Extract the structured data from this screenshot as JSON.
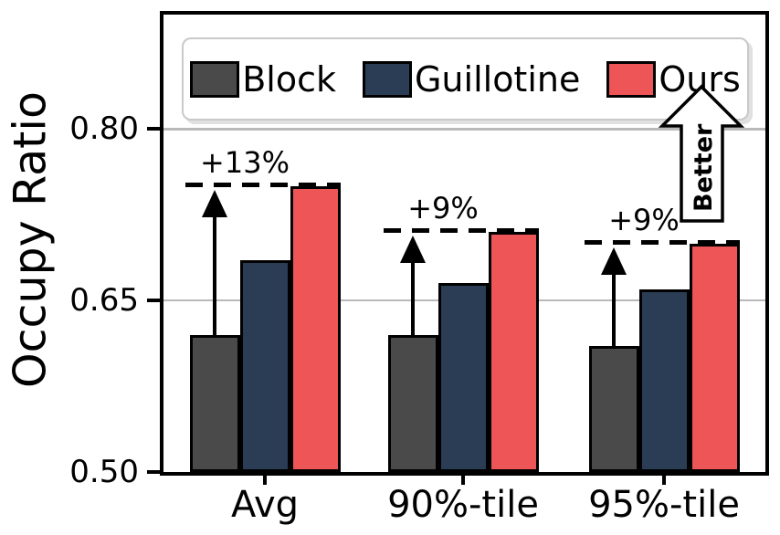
{
  "chart_data": {
    "type": "bar",
    "title": "",
    "ylabel": "Occupy Ratio",
    "xlabel": "",
    "categories": [
      "Avg",
      "90%-tile",
      "95%-tile"
    ],
    "series": [
      {
        "name": "Block",
        "color": "#4a4a4a",
        "values": [
          0.62,
          0.62,
          0.61
        ]
      },
      {
        "name": "Guillotine",
        "color": "#2b3d55",
        "values": [
          0.685,
          0.665,
          0.66
        ]
      },
      {
        "name": "Ours",
        "color": "#ed5556",
        "values": [
          0.75,
          0.71,
          0.7
        ]
      }
    ],
    "ylim": [
      0.5,
      0.9
    ],
    "yticks": [
      0.5,
      0.65,
      0.8
    ],
    "ytick_labels": [
      "0.50",
      "0.65",
      "0.80"
    ],
    "grid": "horizontal gridlines at 0.65 and 0.80",
    "legend_position": "top center, inside plot, horizontal",
    "annotations": [
      {
        "category": "Avg",
        "label": "+13%",
        "from_series": "Block",
        "to_series": "Ours"
      },
      {
        "category": "90%-tile",
        "label": "+9%",
        "from_series": "Block",
        "to_series": "Ours"
      },
      {
        "category": "95%-tile",
        "label": "+9%",
        "from_series": "Block",
        "to_series": "Ours"
      }
    ],
    "direction_annotation": "Better"
  },
  "colors": {
    "bar_edge": "#000000",
    "grid": "#b9b9b9",
    "legend_border": "#c9c9c9",
    "background": "#ffffff"
  }
}
